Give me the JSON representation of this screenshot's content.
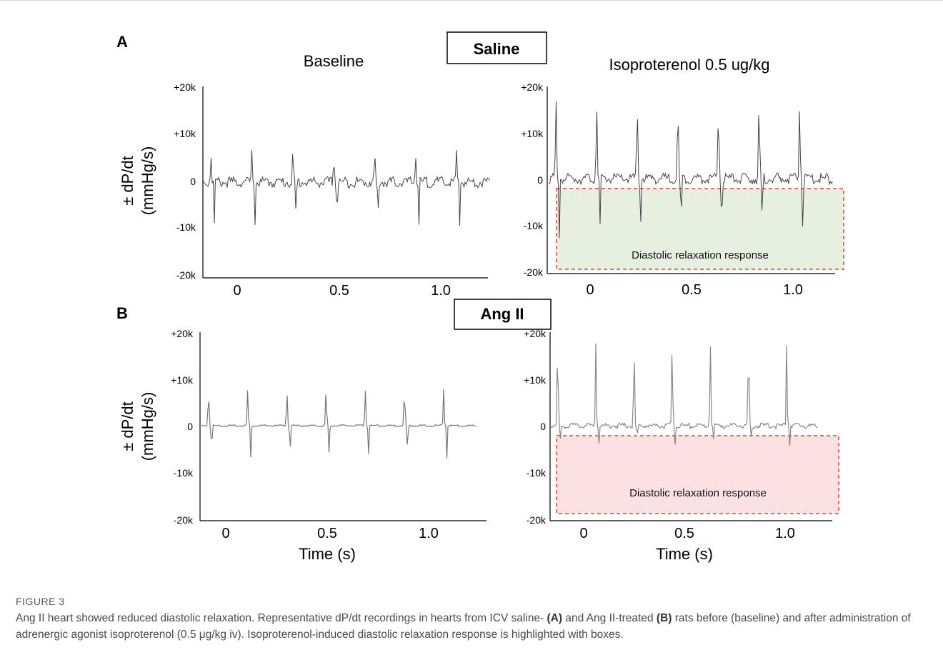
{
  "figure": {
    "panel_a": {
      "letter": "A",
      "group": "Saline",
      "left_title": "Baseline",
      "right_title": "Isoproterenol 0.5 ug/kg"
    },
    "panel_b": {
      "letter": "B",
      "group": "Ang II"
    },
    "ylabel_line1": "± dP/dt",
    "ylabel_line2": "(mmHg/s)",
    "y_ticks": [
      "+20k",
      "+10k",
      "0",
      "-10k",
      "-20k"
    ],
    "x_ticks": [
      "0",
      "0.5",
      "1.0"
    ],
    "xlabel": "Time (s)",
    "box_label": "Diastolic relaxation response",
    "box_colors": {
      "saline": "#e7efe0",
      "angii": "#fbe1e1",
      "border": "#e0403c"
    }
  },
  "caption": {
    "label": "FIGURE 3",
    "sentence1": "Ang II heart showed reduced diastolic relaxation. Representative dP/dt recordings in hearts from ICV saline- ",
    "ref_a": "(A)",
    "sentence2": " and Ang II-treated ",
    "ref_b": "(B)",
    "sentence3": " rats before (baseline) and after administration of adrenergic agonist isoproterenol (0.5 μg/kg iv). Isoproterenol-induced diastolic relaxation response is highlighted with boxes."
  }
}
